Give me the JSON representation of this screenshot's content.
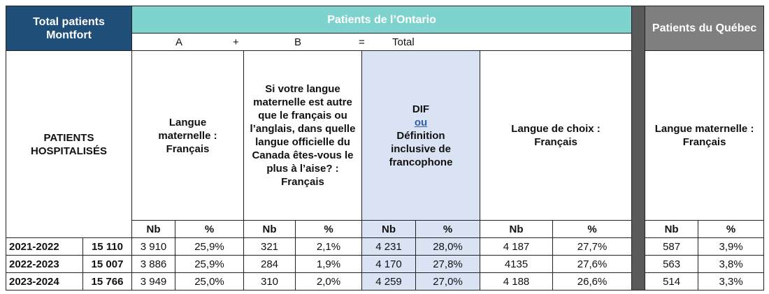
{
  "header": {
    "montfort": "Total patients Montfort",
    "ontario": "Patients de l’Ontario",
    "quebec": "Patients du Québec"
  },
  "formula": [
    "A",
    "+",
    "B",
    "=",
    "Total"
  ],
  "row_label": "PATIENTS HOSPITALISÉS",
  "column_groups": {
    "a": "Langue maternelle : Français",
    "b": "Si votre langue maternelle est autre que le français ou l’anglais, dans quelle langue officielle du Canada êtes-vous le plus à l’aise? : Français",
    "dif": {
      "title": "DIF",
      "or": "ou",
      "text": "Définition inclusive de francophone"
    },
    "choice": "Langue de choix : Français",
    "quebec": "Langue maternelle : Français"
  },
  "subheaders": [
    "Nb",
    "%",
    "Nb",
    "%",
    "Nb",
    "%",
    "Nb",
    "%",
    "Nb",
    "%"
  ],
  "rows": [
    [
      "2021-2022",
      "15 110",
      "3 910",
      "25,9%",
      "321",
      "2,1%",
      "4 231",
      "28,0%",
      "4 187",
      "27,7%",
      "587",
      "3,9%"
    ],
    [
      "2022-2023",
      "15 007",
      "3 886",
      "25,9%",
      "284",
      "1,9%",
      "4 170",
      "27,8%",
      "4135",
      "27,6%",
      "563",
      "3,8%"
    ],
    [
      "2023-2024",
      "15 766",
      "3 949",
      "25,0%",
      "310",
      "2,0%",
      "4 259",
      "27,0%",
      "4 188",
      "26,6%",
      "514",
      "3,3%"
    ]
  ]
}
